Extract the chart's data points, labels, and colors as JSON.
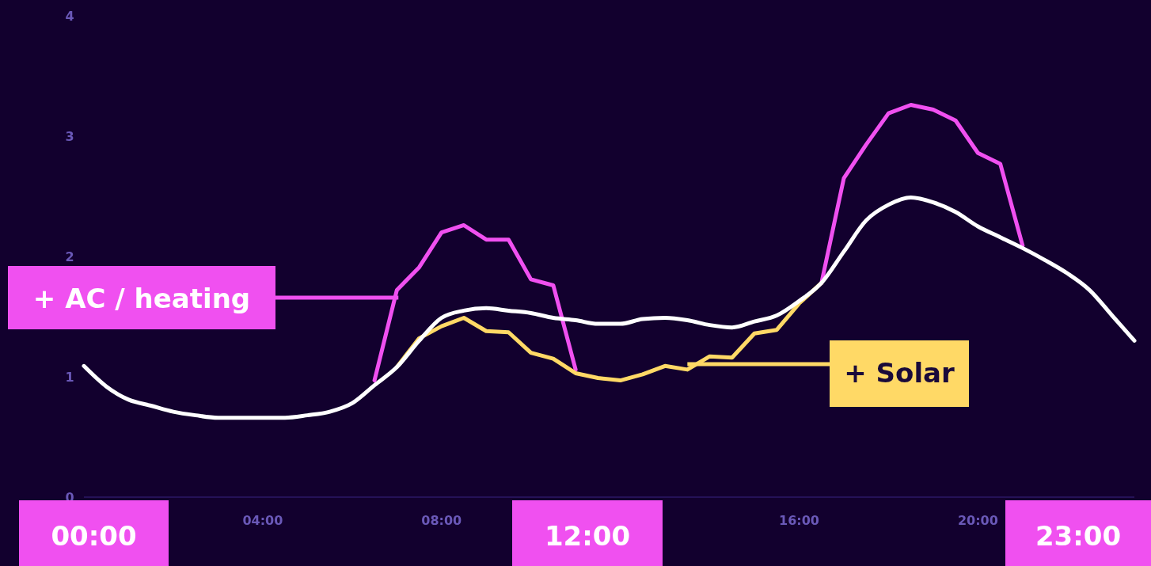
{
  "chart_data": {
    "type": "line",
    "x": [
      0,
      0.5,
      1,
      1.5,
      2,
      2.5,
      3,
      3.5,
      4,
      4.5,
      5,
      5.5,
      6,
      6.5,
      7,
      7.5,
      8,
      8.5,
      9,
      9.5,
      10,
      10.5,
      11,
      11.5,
      12,
      12.5,
      13,
      13.5,
      14,
      14.5,
      15,
      15.5,
      16,
      16.5,
      17,
      17.5,
      18,
      18.5,
      19,
      19.5,
      20,
      20.5,
      21,
      21.5,
      22,
      22.5,
      23,
      23.5
    ],
    "series": [
      {
        "color": "#ffffff",
        "values": [
          1.09,
          0.92,
          0.81,
          0.76,
          0.71,
          0.68,
          0.66,
          0.66,
          0.66,
          0.66,
          0.68,
          0.71,
          0.78,
          0.93,
          1.08,
          1.3,
          1.49,
          1.55,
          1.57,
          1.55,
          1.53,
          1.49,
          1.47,
          1.44,
          1.44,
          1.48,
          1.49,
          1.47,
          1.43,
          1.41,
          1.46,
          1.51,
          1.63,
          1.78,
          2.04,
          2.3,
          2.43,
          2.49,
          2.45,
          2.37,
          2.25,
          2.16,
          2.07,
          1.97,
          1.86,
          1.72,
          1.51,
          1.3
        ]
      },
      {
        "name": "+ AC / heating",
        "color": "#f050f0",
        "values": [
          null,
          null,
          null,
          null,
          null,
          null,
          null,
          null,
          null,
          null,
          null,
          null,
          null,
          0.97,
          1.72,
          1.91,
          2.2,
          2.26,
          2.14,
          2.14,
          1.81,
          1.76,
          1.06,
          null,
          null,
          null,
          null,
          null,
          null,
          null,
          null,
          null,
          null,
          1.78,
          2.65,
          2.93,
          3.19,
          3.26,
          3.22,
          3.13,
          2.86,
          2.77,
          2.09,
          null,
          null,
          null,
          null,
          null
        ]
      },
      {
        "name": "+ Solar",
        "color": "#ffd966",
        "values": [
          null,
          null,
          null,
          null,
          null,
          null,
          null,
          null,
          null,
          null,
          null,
          null,
          null,
          null,
          1.08,
          1.32,
          1.42,
          1.49,
          1.38,
          1.37,
          1.2,
          1.15,
          1.03,
          0.99,
          0.97,
          1.02,
          1.09,
          1.06,
          1.17,
          1.16,
          1.36,
          1.39,
          1.61,
          1.78,
          null,
          null,
          null,
          null,
          null,
          null,
          null,
          null,
          null,
          null,
          null,
          null,
          null,
          null
        ]
      }
    ],
    "xticks": [
      {
        "value": 4,
        "label": "04:00"
      },
      {
        "value": 8,
        "label": "08:00"
      },
      {
        "value": 16,
        "label": "16:00"
      },
      {
        "value": 20,
        "label": "20:00"
      }
    ],
    "xlim": [
      0,
      23.5
    ],
    "ylim": [
      0,
      4
    ],
    "yticks": [
      0,
      1,
      2,
      3,
      4
    ],
    "annotations": [
      "00:00",
      "12:00",
      "23:00"
    ],
    "grid": false,
    "legend": "left",
    "marker": "none",
    "line_style": "solid"
  }
}
